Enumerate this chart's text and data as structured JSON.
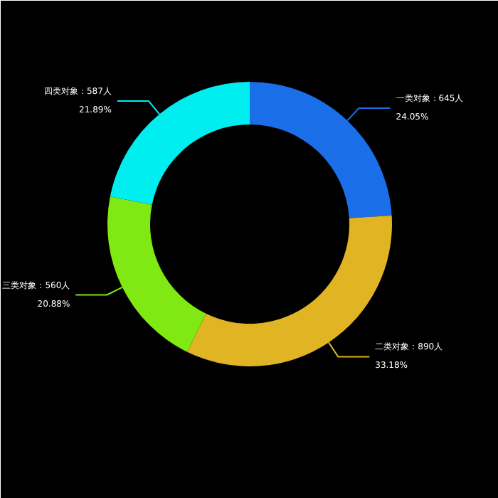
{
  "chart_data": {
    "type": "donut",
    "categories": [
      "一类对象",
      "二类对象",
      "三类对象",
      "四类对象"
    ],
    "values": [
      645,
      890,
      560,
      587
    ],
    "colors": [
      "#1a6fe8",
      "#e0b422",
      "#80e812",
      "#00eef0"
    ],
    "value_labels": [
      "645人",
      "890人",
      "560人",
      "587人"
    ],
    "annotations": [
      {
        "text": "24.05%",
        "x": "一类对象"
      },
      {
        "text": "33.18%",
        "x": "二类对象"
      },
      {
        "text": "20.88%",
        "x": "三类对象"
      },
      {
        "text": "21.89%",
        "x": "四类对象"
      }
    ]
  }
}
